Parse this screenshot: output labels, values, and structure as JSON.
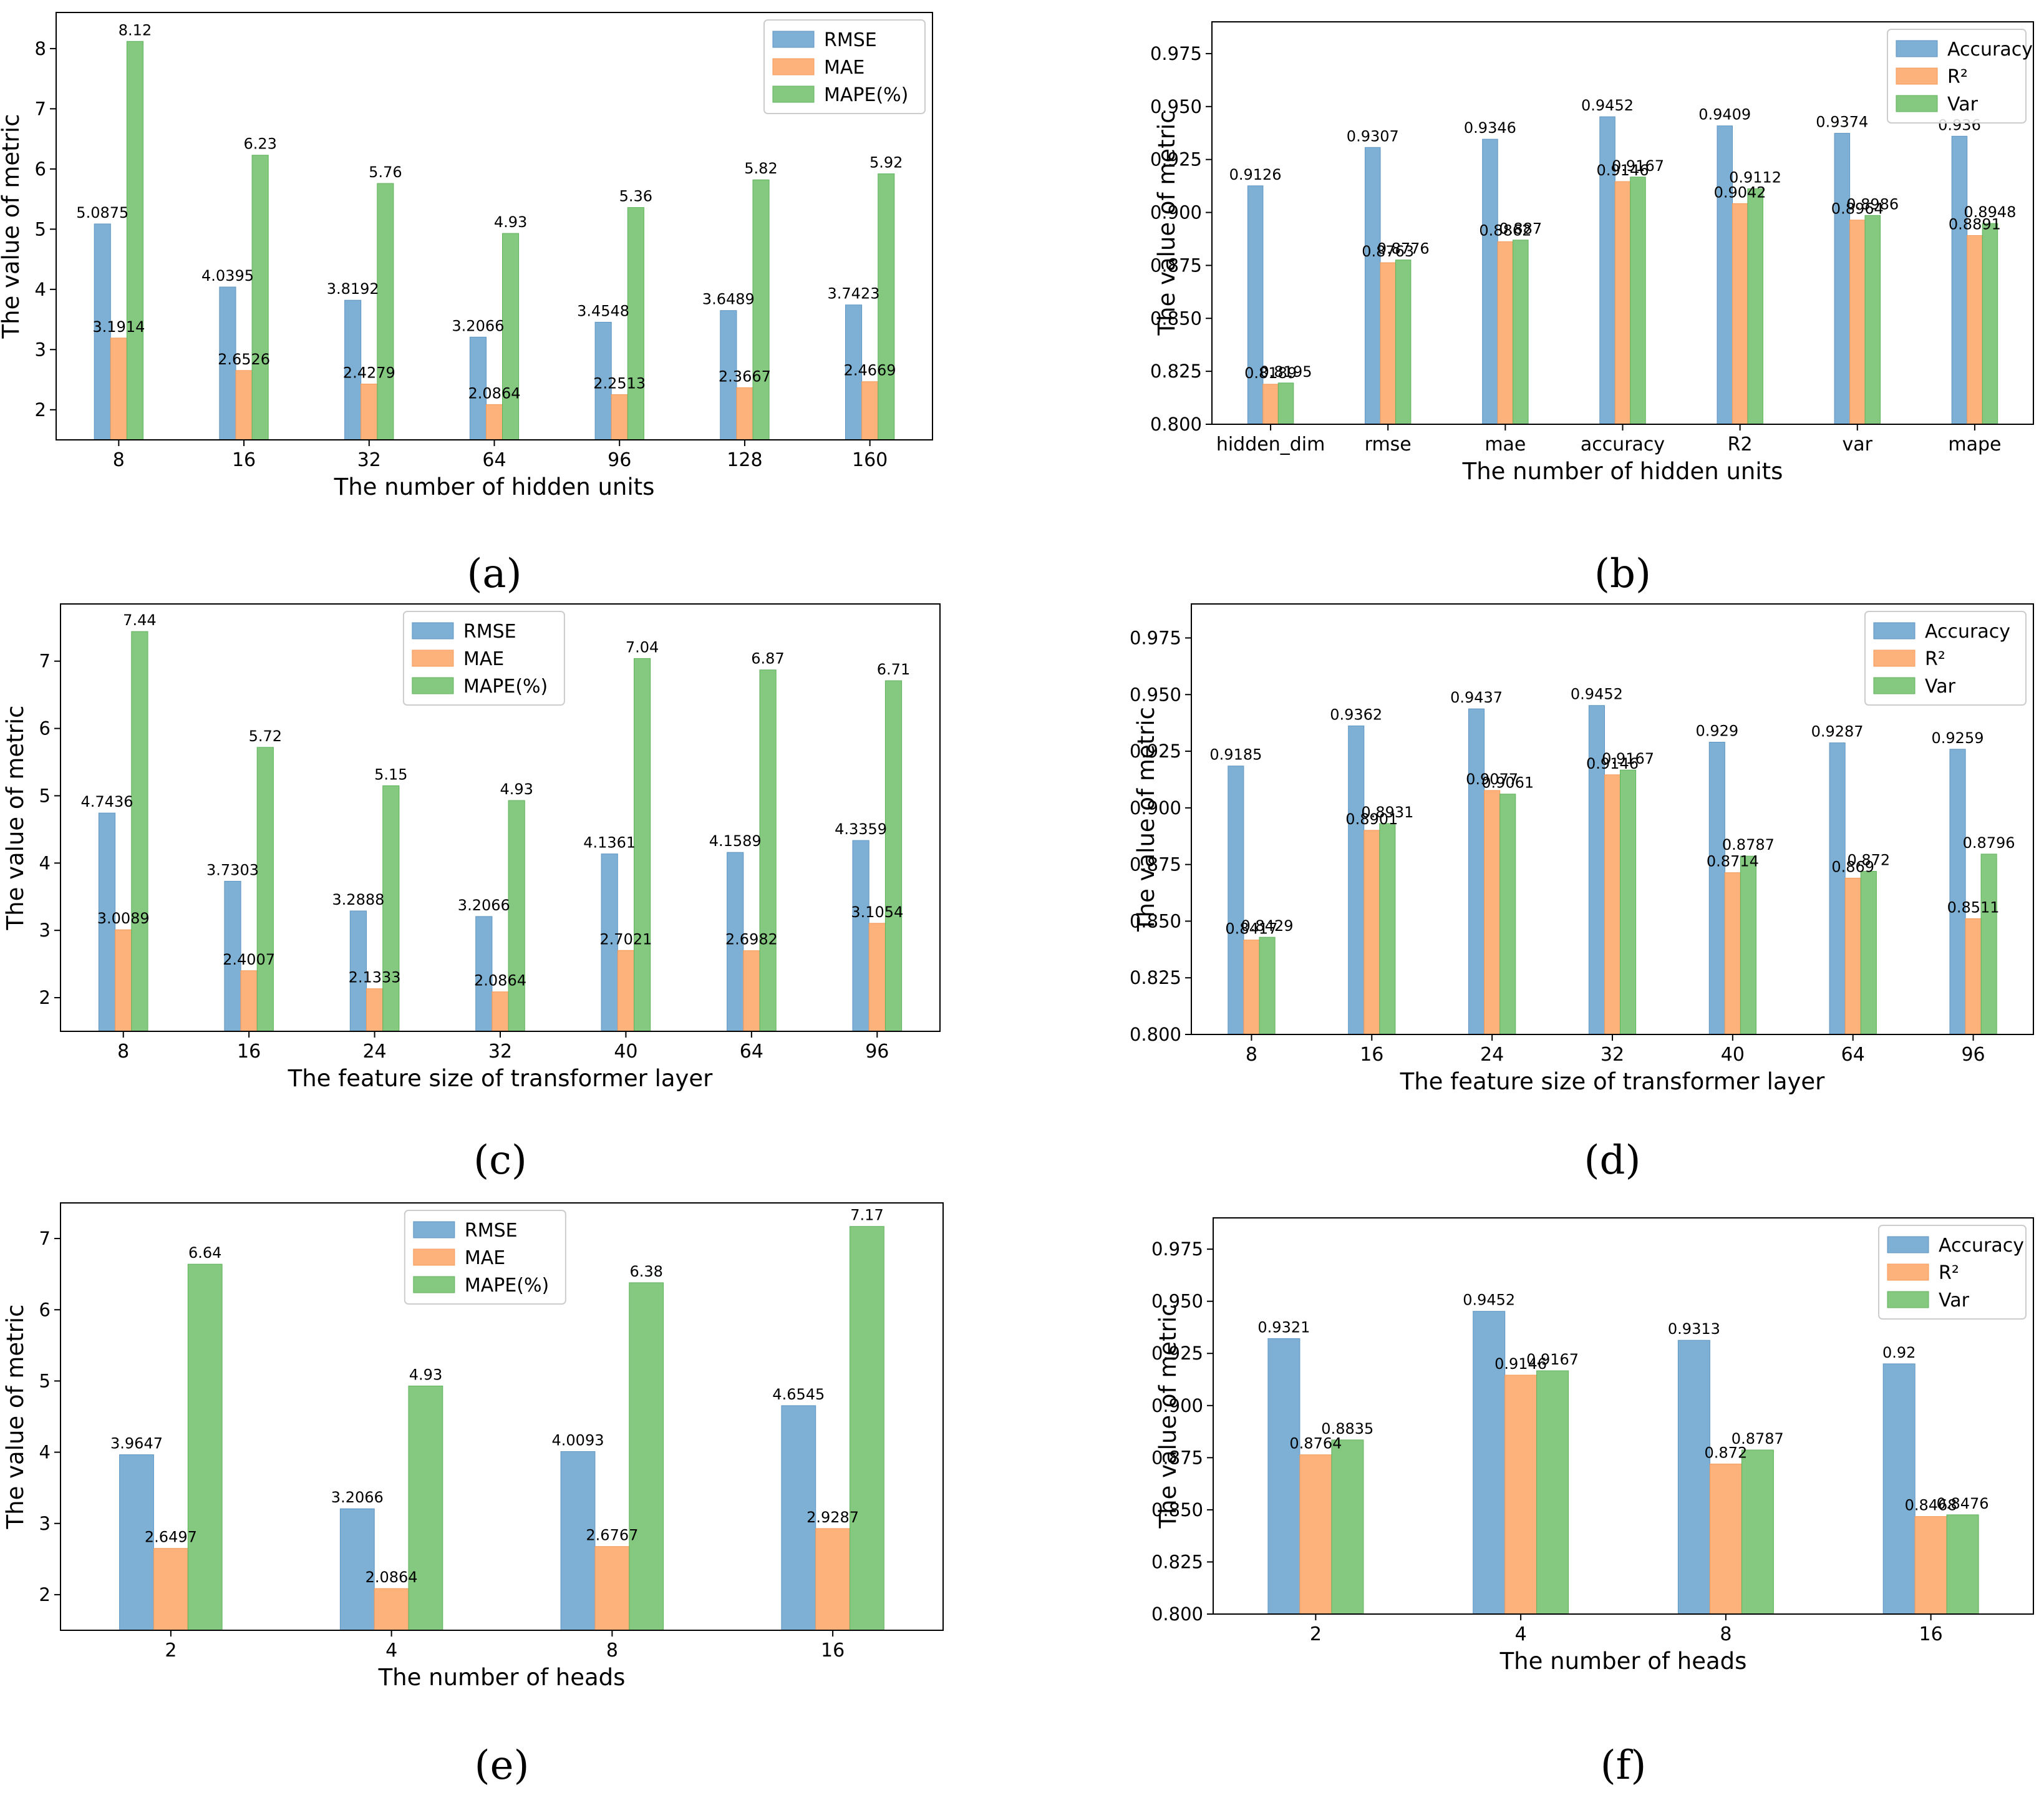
{
  "colors": {
    "series_1": "#7eb0d5",
    "series_2": "#fdb27b",
    "series_3": "#84c97f",
    "series_1_edge": "#5e95c2",
    "series_2_edge": "#f29a5a",
    "series_3_edge": "#5fb25b"
  },
  "chart_data": [
    {
      "id": "a",
      "caption": "(a)",
      "type": "bar",
      "xlabel": "The number of hidden units",
      "ylabel": "The value of metric",
      "categories": [
        "8",
        "16",
        "32",
        "64",
        "96",
        "128",
        "160"
      ],
      "series": [
        {
          "name": "RMSE",
          "values": [
            5.0875,
            4.0395,
            3.8192,
            3.2066,
            3.4548,
            3.6489,
            3.7423
          ],
          "labels": [
            "5.0875",
            "4.0395",
            "3.8192",
            "3.2066",
            "3.4548",
            "3.6489",
            "3.7423"
          ]
        },
        {
          "name": "MAE",
          "values": [
            3.1914,
            2.6526,
            2.4279,
            2.0864,
            2.2513,
            2.3667,
            2.4669
          ],
          "labels": [
            "3.1914",
            "2.6526",
            "2.4279",
            "2.0864",
            "2.2513",
            "2.3667",
            "2.4669"
          ]
        },
        {
          "name": "MAPE(%)",
          "values": [
            8.12,
            6.23,
            5.76,
            4.93,
            5.36,
            5.82,
            5.92
          ],
          "labels": [
            "8.12",
            "6.23",
            "5.76",
            "4.93",
            "5.36",
            "5.82",
            "5.92"
          ]
        }
      ],
      "ylim": [
        1.5,
        8.6
      ],
      "yticks": [
        2,
        3,
        4,
        5,
        6,
        7,
        8
      ],
      "ytick_labels": [
        "2",
        "3",
        "4",
        "5",
        "6",
        "7",
        "8"
      ],
      "legend_position": "top-right",
      "grid": false
    },
    {
      "id": "b",
      "caption": "(b)",
      "type": "bar",
      "xlabel": "The number of hidden units",
      "ylabel": "The value of metric",
      "categories": [
        "hidden_dim",
        "rmse",
        "mae",
        "accuracy",
        "R2",
        "var",
        "mape"
      ],
      "series": [
        {
          "name": "Accuracy",
          "values": [
            0.9126,
            0.9307,
            0.9346,
            0.9452,
            0.9409,
            0.9374,
            0.936
          ],
          "labels": [
            "0.9126",
            "0.9307",
            "0.9346",
            "0.9452",
            "0.9409",
            "0.9374",
            "0.936"
          ]
        },
        {
          "name": "R²",
          "values": [
            0.8189,
            0.8763,
            0.8862,
            0.9146,
            0.9042,
            0.8964,
            0.8891
          ],
          "labels": [
            "0.8189",
            "0.8763",
            "0.8862",
            "0.9146",
            "0.9042",
            "0.8964",
            "0.8891"
          ]
        },
        {
          "name": "Var",
          "values": [
            0.8195,
            0.8776,
            0.887,
            0.9167,
            0.9112,
            0.8986,
            0.8948
          ],
          "labels": [
            "0.8195",
            "0.8776",
            "0.887",
            "0.9167",
            "0.9112",
            "0.8986",
            "0.8948"
          ]
        }
      ],
      "ylim": [
        0.8,
        0.99
      ],
      "yticks": [
        0.8,
        0.825,
        0.85,
        0.875,
        0.9,
        0.925,
        0.95,
        0.975
      ],
      "ytick_labels": [
        "0.800",
        "0.825",
        "0.850",
        "0.875",
        "0.900",
        "0.925",
        "0.950",
        "0.975"
      ],
      "legend_position": "top-right",
      "grid": false
    },
    {
      "id": "c",
      "caption": "(c)",
      "type": "bar",
      "xlabel": "The feature size of transformer layer",
      "ylabel": "The value of metric",
      "categories": [
        "8",
        "16",
        "24",
        "32",
        "40",
        "64",
        "96"
      ],
      "series": [
        {
          "name": "RMSE",
          "values": [
            4.7436,
            3.7303,
            3.2888,
            3.2066,
            4.1361,
            4.1589,
            4.3359
          ],
          "labels": [
            "4.7436",
            "3.7303",
            "3.2888",
            "3.2066",
            "4.1361",
            "4.1589",
            "4.3359"
          ]
        },
        {
          "name": "MAE",
          "values": [
            3.0089,
            2.4007,
            2.1333,
            2.0864,
            2.7021,
            2.6982,
            3.1054
          ],
          "labels": [
            "3.0089",
            "2.4007",
            "2.1333",
            "2.0864",
            "2.7021",
            "2.6982",
            "3.1054"
          ]
        },
        {
          "name": "MAPE(%)",
          "values": [
            7.44,
            5.72,
            5.15,
            4.93,
            7.04,
            6.87,
            6.71
          ],
          "labels": [
            "7.44",
            "5.72",
            "5.15",
            "4.93",
            "7.04",
            "6.87",
            "6.71"
          ]
        }
      ],
      "ylim": [
        1.5,
        7.85
      ],
      "yticks": [
        2,
        3,
        4,
        5,
        6,
        7
      ],
      "ytick_labels": [
        "2",
        "3",
        "4",
        "5",
        "6",
        "7"
      ],
      "legend_position": "top-center",
      "grid": false
    },
    {
      "id": "d",
      "caption": "(d)",
      "type": "bar",
      "xlabel": "The feature size of transformer layer",
      "ylabel": "The value of metric",
      "categories": [
        "8",
        "16",
        "24",
        "32",
        "40",
        "64",
        "96"
      ],
      "series": [
        {
          "name": "Accuracy",
          "values": [
            0.9185,
            0.9362,
            0.9437,
            0.9452,
            0.929,
            0.9287,
            0.9259
          ],
          "labels": [
            "0.9185",
            "0.9362",
            "0.9437",
            "0.9452",
            "0.929",
            "0.9287",
            "0.9259"
          ]
        },
        {
          "name": "R²",
          "values": [
            0.8417,
            0.8901,
            0.9077,
            0.9146,
            0.8714,
            0.869,
            0.8511
          ],
          "labels": [
            "0.8417",
            "0.8901",
            "0.9077",
            "0.9146",
            "0.8714",
            "0.869",
            "0.8511"
          ]
        },
        {
          "name": "Var",
          "values": [
            0.8429,
            0.8931,
            0.9061,
            0.9167,
            0.8787,
            0.872,
            0.8796
          ],
          "labels": [
            "0.8429",
            "0.8931",
            "0.9061",
            "0.9167",
            "0.8787",
            "0.872",
            "0.8796"
          ]
        }
      ],
      "ylim": [
        0.8,
        0.99
      ],
      "yticks": [
        0.8,
        0.825,
        0.85,
        0.875,
        0.9,
        0.925,
        0.95,
        0.975
      ],
      "ytick_labels": [
        "0.800",
        "0.825",
        "0.850",
        "0.875",
        "0.900",
        "0.925",
        "0.950",
        "0.975"
      ],
      "legend_position": "top-right",
      "grid": false
    },
    {
      "id": "e",
      "caption": "(e)",
      "type": "bar",
      "xlabel": "The number of heads",
      "ylabel": "The value of metric",
      "categories": [
        "2",
        "4",
        "8",
        "16"
      ],
      "series": [
        {
          "name": "RMSE",
          "values": [
            3.9647,
            3.2066,
            4.0093,
            4.6545
          ],
          "labels": [
            "3.9647",
            "3.2066",
            "4.0093",
            "4.6545"
          ]
        },
        {
          "name": "MAE",
          "values": [
            2.6497,
            2.0864,
            2.6767,
            2.9287
          ],
          "labels": [
            "2.6497",
            "2.0864",
            "2.6767",
            "2.9287"
          ]
        },
        {
          "name": "MAPE(%)",
          "values": [
            6.64,
            4.93,
            6.38,
            7.17
          ],
          "labels": [
            "6.64",
            "4.93",
            "6.38",
            "7.17"
          ]
        }
      ],
      "ylim": [
        1.5,
        7.5
      ],
      "yticks": [
        2,
        3,
        4,
        5,
        6,
        7
      ],
      "ytick_labels": [
        "2",
        "3",
        "4",
        "5",
        "6",
        "7"
      ],
      "legend_position": "top-center",
      "grid": false
    },
    {
      "id": "f",
      "caption": "(f)",
      "type": "bar",
      "xlabel": "The number of heads",
      "ylabel": "The value of metric",
      "categories": [
        "2",
        "4",
        "8",
        "16"
      ],
      "series": [
        {
          "name": "Accuracy",
          "values": [
            0.9321,
            0.9452,
            0.9313,
            0.92
          ],
          "labels": [
            "0.9321",
            "0.9452",
            "0.9313",
            "0.92"
          ]
        },
        {
          "name": "R²",
          "values": [
            0.8764,
            0.9146,
            0.872,
            0.8468
          ],
          "labels": [
            "0.8764",
            "0.9146",
            "0.872",
            "0.8468"
          ]
        },
        {
          "name": "Var",
          "values": [
            0.8835,
            0.9167,
            0.8787,
            0.8476
          ],
          "labels": [
            "0.8835",
            "0.9167",
            "0.8787",
            "0.8476"
          ]
        }
      ],
      "ylim": [
        0.8,
        0.99
      ],
      "yticks": [
        0.8,
        0.825,
        0.85,
        0.875,
        0.9,
        0.925,
        0.95,
        0.975
      ],
      "ytick_labels": [
        "0.800",
        "0.825",
        "0.850",
        "0.875",
        "0.900",
        "0.925",
        "0.950",
        "0.975"
      ],
      "legend_position": "top-right",
      "grid": false
    }
  ]
}
